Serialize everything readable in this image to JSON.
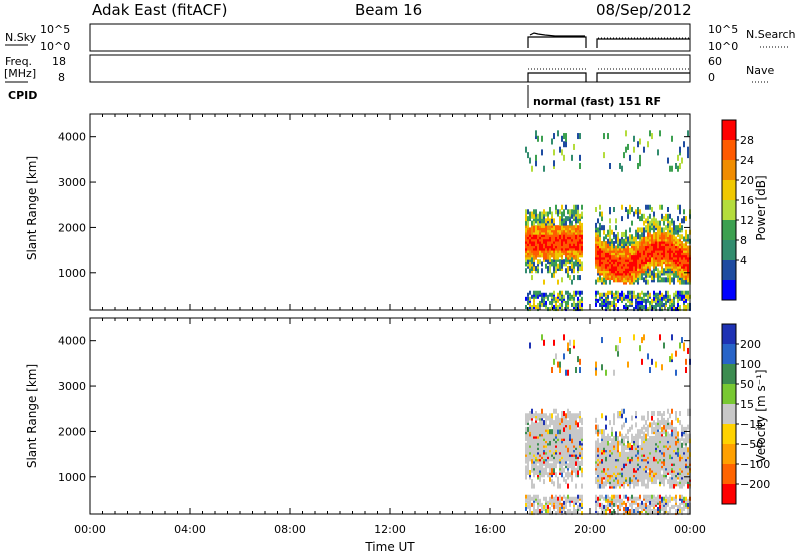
{
  "header": {
    "left": "Adak East (fitACF)",
    "center": "Beam 16",
    "right": "08/Sep/2012"
  },
  "nsky_panel": {
    "label": "N.Sky",
    "yticks_left": [
      "10^5",
      "10^0"
    ],
    "yticks_right": [
      "10^5",
      "10^0"
    ],
    "right_label": "N.Search",
    "right_legend_line": "dotted"
  },
  "freq_panel": {
    "label_line1": "Freq.",
    "label_line2": "[MHz]",
    "yticks_left": [
      "18",
      "8"
    ],
    "yticks_right": [
      "60",
      "0"
    ],
    "right_label": "Nave",
    "right_legend_line": "dotted"
  },
  "cpid": {
    "label": "CPID",
    "mode_text": "normal (fast) 151 RF"
  },
  "power_panel": {
    "ylabel": "Slant Range [km]",
    "yticks": [
      "4000",
      "3000",
      "2000",
      "1000"
    ],
    "colorbar_label": "Power [dB]",
    "colorbar_ticks": [
      "28",
      "24",
      "20",
      "16",
      "12",
      "8",
      "4"
    ],
    "colorbar_colors": [
      "#ff0000",
      "#ff5a00",
      "#f08c00",
      "#f0c800",
      "#b4dc3c",
      "#3ca050",
      "#328c6e",
      "#1e4ba0",
      "#0000ff"
    ]
  },
  "velocity_panel": {
    "ylabel": "Slant Range [km]",
    "yticks": [
      "4000",
      "3000",
      "2000",
      "1000"
    ],
    "colorbar_label": "Velocity [m s⁻¹]",
    "colorbar_ticks": [
      "200",
      "100",
      "50",
      "15",
      "−15",
      "−50",
      "−100",
      "−200"
    ],
    "colorbar_colors": [
      "#1e32b4",
      "#2864c8",
      "#3c8c50",
      "#78c832",
      "#c8c8c8",
      "#ffd200",
      "#ffa000",
      "#ff6400",
      "#ff0000"
    ]
  },
  "xaxis": {
    "ticks": [
      "00:00",
      "04:00",
      "08:00",
      "12:00",
      "16:00",
      "20:00",
      "00:00"
    ],
    "label": "Time UT"
  },
  "chart_data": [
    {
      "type": "heatmap",
      "title": "Power",
      "x_range_hours": [
        0,
        24
      ],
      "y_range_km": [
        180,
        4500
      ],
      "data_interval_hours": [
        [
          17.4,
          19.7
        ],
        [
          20.2,
          24.0
        ]
      ],
      "colorscale_range_db": [
        0,
        32
      ]
    },
    {
      "type": "heatmap",
      "title": "Velocity",
      "x_range_hours": [
        0,
        24
      ],
      "y_range_km": [
        180,
        4500
      ],
      "data_interval_hours": [
        [
          17.4,
          19.7
        ],
        [
          20.2,
          24.0
        ]
      ],
      "colorscale_range_ms": [
        -250,
        250
      ]
    }
  ]
}
